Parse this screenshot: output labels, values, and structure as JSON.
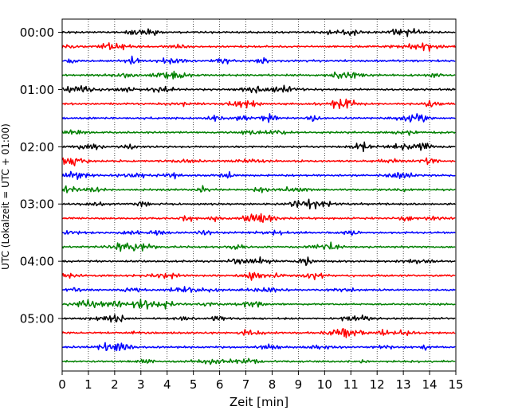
{
  "chart_data": {
    "type": "line",
    "title": "",
    "xlabel": "Zeit  [min]",
    "ylabel": "UTC (Lokalzeit = UTC + 01:00)",
    "xlim": [
      0,
      15
    ],
    "xticks": [
      0,
      1,
      2,
      3,
      4,
      5,
      6,
      7,
      8,
      9,
      10,
      11,
      12,
      13,
      14,
      15
    ],
    "yticks": [
      "00:00",
      "01:00",
      "02:00",
      "03:00",
      "04:00",
      "05:00"
    ],
    "grid": "vertical-dotted",
    "trace_interval_min": 15,
    "trace_count": 24,
    "trace_colors": [
      "#000000",
      "#ff0000",
      "#0000ff",
      "#008000"
    ]
  }
}
